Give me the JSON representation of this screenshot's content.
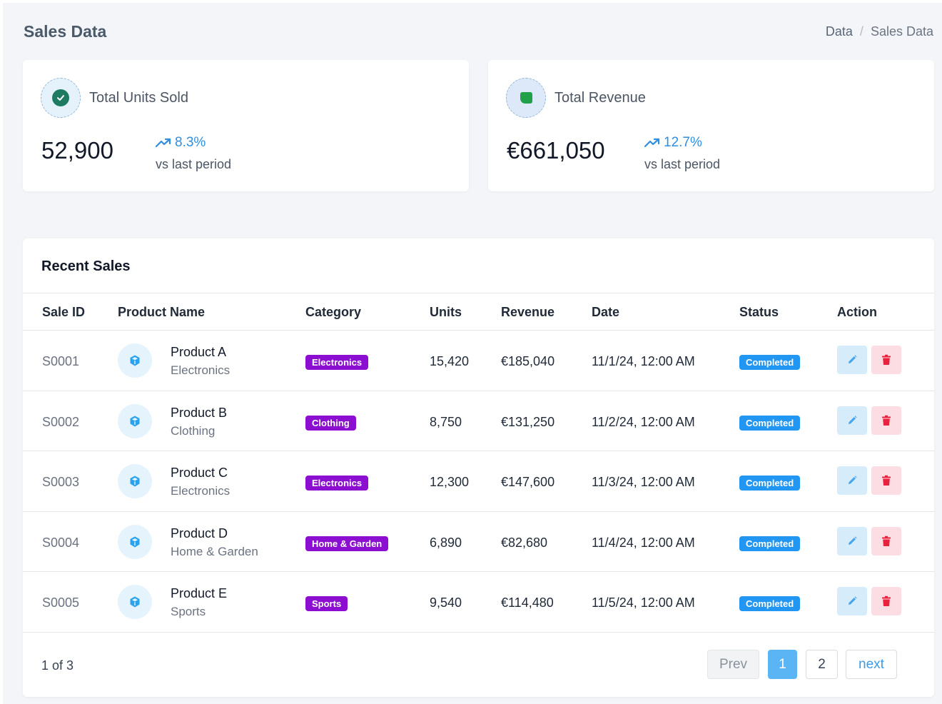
{
  "header": {
    "title": "Sales Data",
    "breadcrumb": {
      "parent": "Data",
      "separator": "/",
      "current": "Sales Data"
    }
  },
  "stats": {
    "units": {
      "label": "Total Units Sold",
      "value": "52,900",
      "trend": "8.3%",
      "sub": "vs last period",
      "icon": "check-circle-icon"
    },
    "revenue": {
      "label": "Total Revenue",
      "value": "€661,050",
      "trend": "12.7%",
      "sub": "vs last period",
      "icon": "square-icon"
    }
  },
  "table": {
    "title": "Recent Sales",
    "columns": [
      "Sale ID",
      "Product Name",
      "Category",
      "Units",
      "Revenue",
      "Date",
      "Status",
      "Action"
    ],
    "rows": [
      {
        "id": "S0001",
        "name": "Product A",
        "category": "Electronics",
        "badge": "Electronics",
        "units": "15,420",
        "revenue": "€185,040",
        "date": "11/1/24, 12:00 AM",
        "status": "Completed"
      },
      {
        "id": "S0002",
        "name": "Product B",
        "category": "Clothing",
        "badge": "Clothing",
        "units": "8,750",
        "revenue": "€131,250",
        "date": "11/2/24, 12:00 AM",
        "status": "Completed"
      },
      {
        "id": "S0003",
        "name": "Product C",
        "category": "Electronics",
        "badge": "Electronics",
        "units": "12,300",
        "revenue": "€147,600",
        "date": "11/3/24, 12:00 AM",
        "status": "Completed"
      },
      {
        "id": "S0004",
        "name": "Product D",
        "category": "Home & Garden",
        "badge": "Home & Garden",
        "units": "6,890",
        "revenue": "€82,680",
        "date": "11/4/24, 12:00 AM",
        "status": "Completed"
      },
      {
        "id": "S0005",
        "name": "Product E",
        "category": "Sports",
        "badge": "Sports",
        "units": "9,540",
        "revenue": "€114,480",
        "date": "11/5/24, 12:00 AM",
        "status": "Completed"
      }
    ]
  },
  "pagination": {
    "info": "1 of 3",
    "prev": "Prev",
    "pages": [
      "1",
      "2"
    ],
    "next": "next",
    "current": "1"
  },
  "colors": {
    "category_badge": "#8c0ed1",
    "status_badge": "#2196f3",
    "trend": "#2f8ee0",
    "active_page": "#5bb5f5"
  }
}
